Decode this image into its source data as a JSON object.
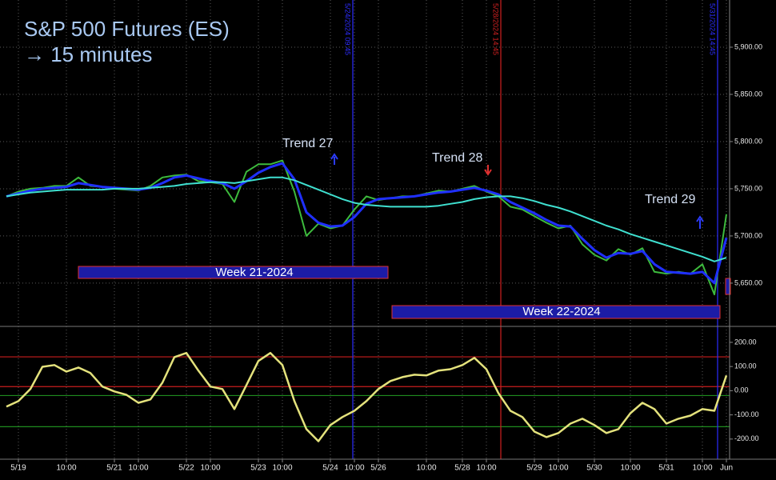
{
  "chart_data": [
    {
      "type": "line",
      "title": "S&P 500 Futures (ES)",
      "subtitle": "→ 15 minutes",
      "categories": [
        null,
        "5/19",
        null,
        null,
        null,
        "10:00",
        null,
        null,
        null,
        "5/21",
        null,
        "10:00",
        null,
        null,
        null,
        "5/22",
        null,
        "10:00",
        null,
        null,
        null,
        "5/23",
        null,
        "10:00",
        null,
        null,
        null,
        "5/24",
        null,
        "10:00",
        null,
        "5/26",
        null,
        null,
        null,
        "10:00",
        null,
        null,
        "5/28",
        null,
        "10:00",
        null,
        null,
        null,
        "5/29",
        null,
        "10:00",
        null,
        null,
        "5/30",
        null,
        null,
        "10:00",
        null,
        null,
        "5/31",
        null,
        null,
        "10:00",
        null,
        "Jun"
      ],
      "series": [
        {
          "color": "#3dbb3d",
          "values": [
            5742,
            5747,
            5750,
            5751,
            5753,
            5753,
            5762,
            5753,
            5752,
            5750,
            5749,
            5748,
            5753,
            5762,
            5764,
            5765,
            5758,
            5757,
            5755,
            5736,
            5768,
            5776,
            5776,
            5780,
            5747,
            5700,
            5713,
            5708,
            5711,
            5728,
            5742,
            5738,
            5740,
            5742,
            5742,
            5745,
            5748,
            5747,
            5750,
            5753,
            5747,
            5742,
            5731,
            5728,
            5721,
            5714,
            5708,
            5711,
            5691,
            5680,
            5674,
            5686,
            5680,
            5687,
            5662,
            5660,
            5662,
            5660,
            5670,
            5638,
            5723
          ]
        },
        {
          "color": "#1f2fff",
          "values": [
            5742,
            5745,
            5748,
            5750,
            5751,
            5752,
            5756,
            5754,
            5752,
            5751,
            5750,
            5749,
            5751,
            5756,
            5762,
            5764,
            5761,
            5758,
            5756,
            5750,
            5758,
            5767,
            5773,
            5777,
            5760,
            5725,
            5714,
            5710,
            5711,
            5720,
            5734,
            5739,
            5740,
            5741,
            5742,
            5744,
            5746,
            5747,
            5749,
            5751,
            5748,
            5744,
            5736,
            5730,
            5724,
            5717,
            5711,
            5710,
            5697,
            5685,
            5677,
            5682,
            5681,
            5684,
            5670,
            5662,
            5661,
            5660,
            5662,
            5650,
            5698
          ]
        },
        {
          "color": "#3fe0d0",
          "values": [
            5742,
            5744,
            5746,
            5747,
            5748,
            5749,
            5749,
            5749,
            5749,
            5750,
            5750,
            5750,
            5751,
            5752,
            5753,
            5755,
            5756,
            5757,
            5757,
            5756,
            5758,
            5760,
            5762,
            5762,
            5759,
            5754,
            5749,
            5744,
            5739,
            5735,
            5733,
            5732,
            5731,
            5731,
            5731,
            5731,
            5732,
            5734,
            5736,
            5739,
            5741,
            5742,
            5742,
            5740,
            5737,
            5733,
            5730,
            5726,
            5721,
            5716,
            5711,
            5707,
            5702,
            5698,
            5694,
            5690,
            5686,
            5682,
            5678,
            5673,
            5677
          ]
        }
      ],
      "ylim": [
        5605,
        5950
      ],
      "yticks": [
        {
          "value": 5650,
          "label": "5,650.00"
        },
        {
          "value": 5700,
          "label": "5,700.00"
        },
        {
          "value": 5750,
          "label": "5,750.00"
        },
        {
          "value": 5800,
          "label": "5,800.00"
        },
        {
          "value": 5850,
          "label": "5,850.00"
        },
        {
          "value": 5900,
          "label": "5,900.00"
        }
      ],
      "grid": true,
      "annotations": [
        "Trend 27",
        "Trend 28",
        "Trend 29"
      ],
      "ranges": [
        "Week 21-2024",
        "Week 22-2024"
      ],
      "markers": [
        {
          "label": "5/24/2024 09:45",
          "color": "#2c2cff"
        },
        {
          "label": "5/28/2024 14:45",
          "color": "#d02020"
        },
        {
          "label": "5/31/2024 14:45",
          "color": "#2c2cff"
        }
      ]
    },
    {
      "type": "line",
      "series": [
        {
          "color": "#e4e27c",
          "values": [
            -66,
            -43,
            7,
            99,
            106,
            79,
            96,
            73,
            17,
            -3,
            -17,
            -50,
            -36,
            33,
            139,
            156,
            83,
            17,
            7,
            -76,
            23,
            123,
            156,
            106,
            -43,
            -159,
            -209,
            -142,
            -109,
            -83,
            -43,
            7,
            40,
            56,
            66,
            63,
            83,
            89,
            106,
            136,
            89,
            -10,
            -83,
            -109,
            -169,
            -192,
            -175,
            -136,
            -116,
            -142,
            -175,
            -159,
            -93,
            -50,
            -76,
            -136,
            -116,
            -103,
            -76,
            -83,
            63
          ]
        }
      ],
      "ylim": [
        -280,
        256
      ],
      "yticks": [
        {
          "value": -200,
          "label": "-200.00"
        },
        {
          "value": -100,
          "label": "-100.00"
        },
        {
          "value": 0,
          "label": "0.00"
        },
        {
          "value": 100,
          "label": "100.00"
        },
        {
          "value": 200,
          "label": "200.00"
        }
      ],
      "grid": false,
      "reference_lines": [
        {
          "value": 140,
          "color": "#c81e1e"
        },
        {
          "value": 17,
          "color": "#c81e1e"
        },
        {
          "value": -20,
          "color": "#1e8c1e"
        },
        {
          "value": -149,
          "color": "#1e8c1e"
        }
      ]
    }
  ]
}
